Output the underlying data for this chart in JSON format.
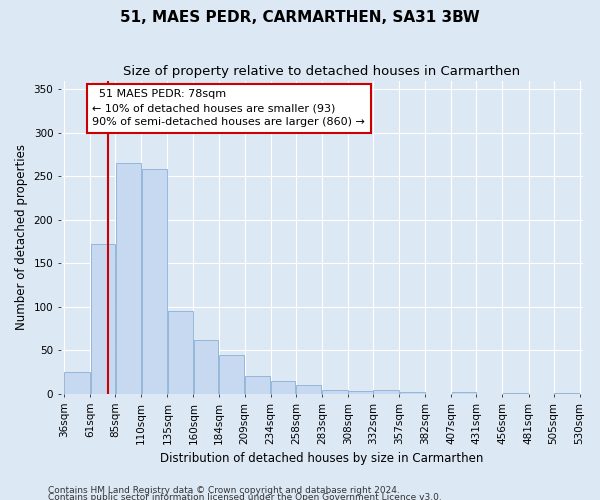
{
  "title": "51, MAES PEDR, CARMARTHEN, SA31 3BW",
  "subtitle": "Size of property relative to detached houses in Carmarthen",
  "xlabel": "Distribution of detached houses by size in Carmarthen",
  "ylabel": "Number of detached properties",
  "footer_line1": "Contains HM Land Registry data © Crown copyright and database right 2024.",
  "footer_line2": "Contains public sector information licensed under the Open Government Licence v3.0.",
  "bins": [
    36,
    61,
    85,
    110,
    135,
    160,
    184,
    209,
    234,
    258,
    283,
    308,
    332,
    357,
    382,
    407,
    431,
    456,
    481,
    505,
    530
  ],
  "bar_values": [
    25,
    172,
    265,
    258,
    95,
    62,
    45,
    20,
    15,
    10,
    4,
    3,
    4,
    2,
    0,
    2,
    0,
    1,
    0,
    1,
    0
  ],
  "bar_color": "#c6d9f0",
  "bar_edge_color": "#8ab0d4",
  "vline_x": 78,
  "vline_color": "#cc0000",
  "annotation_text": "  51 MAES PEDR: 78sqm\n← 10% of detached houses are smaller (93)\n90% of semi-detached houses are larger (860) →",
  "annotation_box_color": "#ffffff",
  "annotation_box_edge": "#cc0000",
  "ylim": [
    0,
    360
  ],
  "yticks": [
    0,
    50,
    100,
    150,
    200,
    250,
    300,
    350
  ],
  "bg_color": "#dde8f5",
  "plot_bg_color": "#dde8f5",
  "grid_color": "#ffffff",
  "title_fontsize": 11,
  "subtitle_fontsize": 9.5,
  "tick_fontsize": 7.5,
  "label_fontsize": 8.5
}
